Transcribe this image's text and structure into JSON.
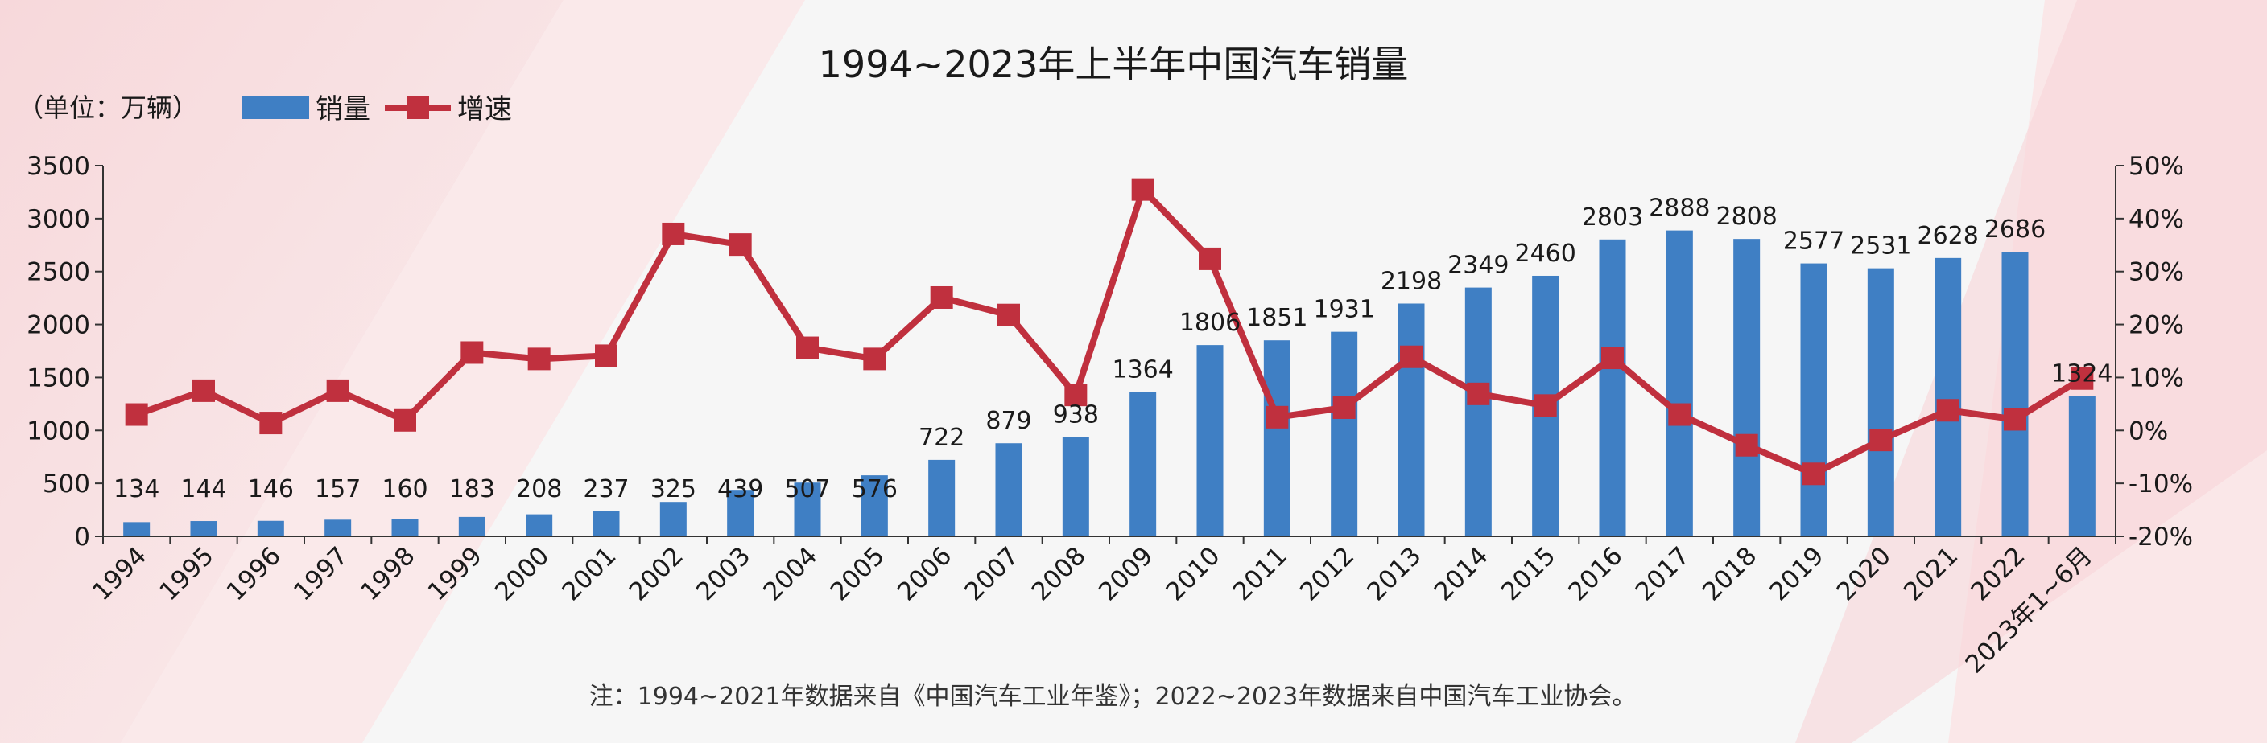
{
  "chart_data": {
    "type": "bar",
    "title": "1994~2023年上半年中国汽车销量",
    "unit_label": "（单位：万辆）",
    "note": "注：1994~2021年数据来自《中国汽车工业年鉴》；2022~2023年数据来自中国汽车工业协会。",
    "categories": [
      "1994",
      "1995",
      "1996",
      "1997",
      "1998",
      "1999",
      "2000",
      "2001",
      "2002",
      "2003",
      "2004",
      "2005",
      "2006",
      "2007",
      "2008",
      "2009",
      "2010",
      "2011",
      "2012",
      "2013",
      "2014",
      "2015",
      "2016",
      "2017",
      "2018",
      "2019",
      "2020",
      "2021",
      "2022",
      "2023年1~6月"
    ],
    "series": [
      {
        "name": "销量",
        "type": "bar",
        "axis": "left",
        "color": "#3f7fc4",
        "values": [
          134,
          144,
          146,
          157,
          160,
          183,
          208,
          237,
          325,
          439,
          507,
          576,
          722,
          879,
          938,
          1364,
          1806,
          1851,
          1931,
          2198,
          2349,
          2460,
          2803,
          2888,
          2808,
          2577,
          2531,
          2628,
          2686,
          1324
        ]
      },
      {
        "name": "增速",
        "type": "line",
        "axis": "right",
        "color": "#c0303e",
        "values": [
          3,
          7.5,
          1.4,
          7.5,
          1.9,
          14.7,
          13.5,
          14.1,
          37.1,
          35.1,
          15.6,
          13.5,
          25.1,
          21.8,
          6.7,
          45.5,
          32.4,
          2.5,
          4.3,
          13.9,
          6.9,
          4.7,
          13.7,
          3.0,
          -2.8,
          -8.2,
          -1.8,
          3.8,
          2.1,
          9.8
        ]
      }
    ],
    "y_left": {
      "min": 0,
      "max": 3500,
      "ticks": [
        "0",
        "500",
        "1000",
        "1500",
        "2000",
        "2500",
        "3000",
        "3500"
      ]
    },
    "y_right": {
      "min": -20,
      "max": 50,
      "ticks": [
        "-20%",
        "-10%",
        "0%",
        "10%",
        "20%",
        "30%",
        "40%",
        "50%"
      ]
    },
    "legend": {
      "placement": "top-left",
      "items": [
        "销量",
        "增速"
      ]
    },
    "grid": false
  }
}
